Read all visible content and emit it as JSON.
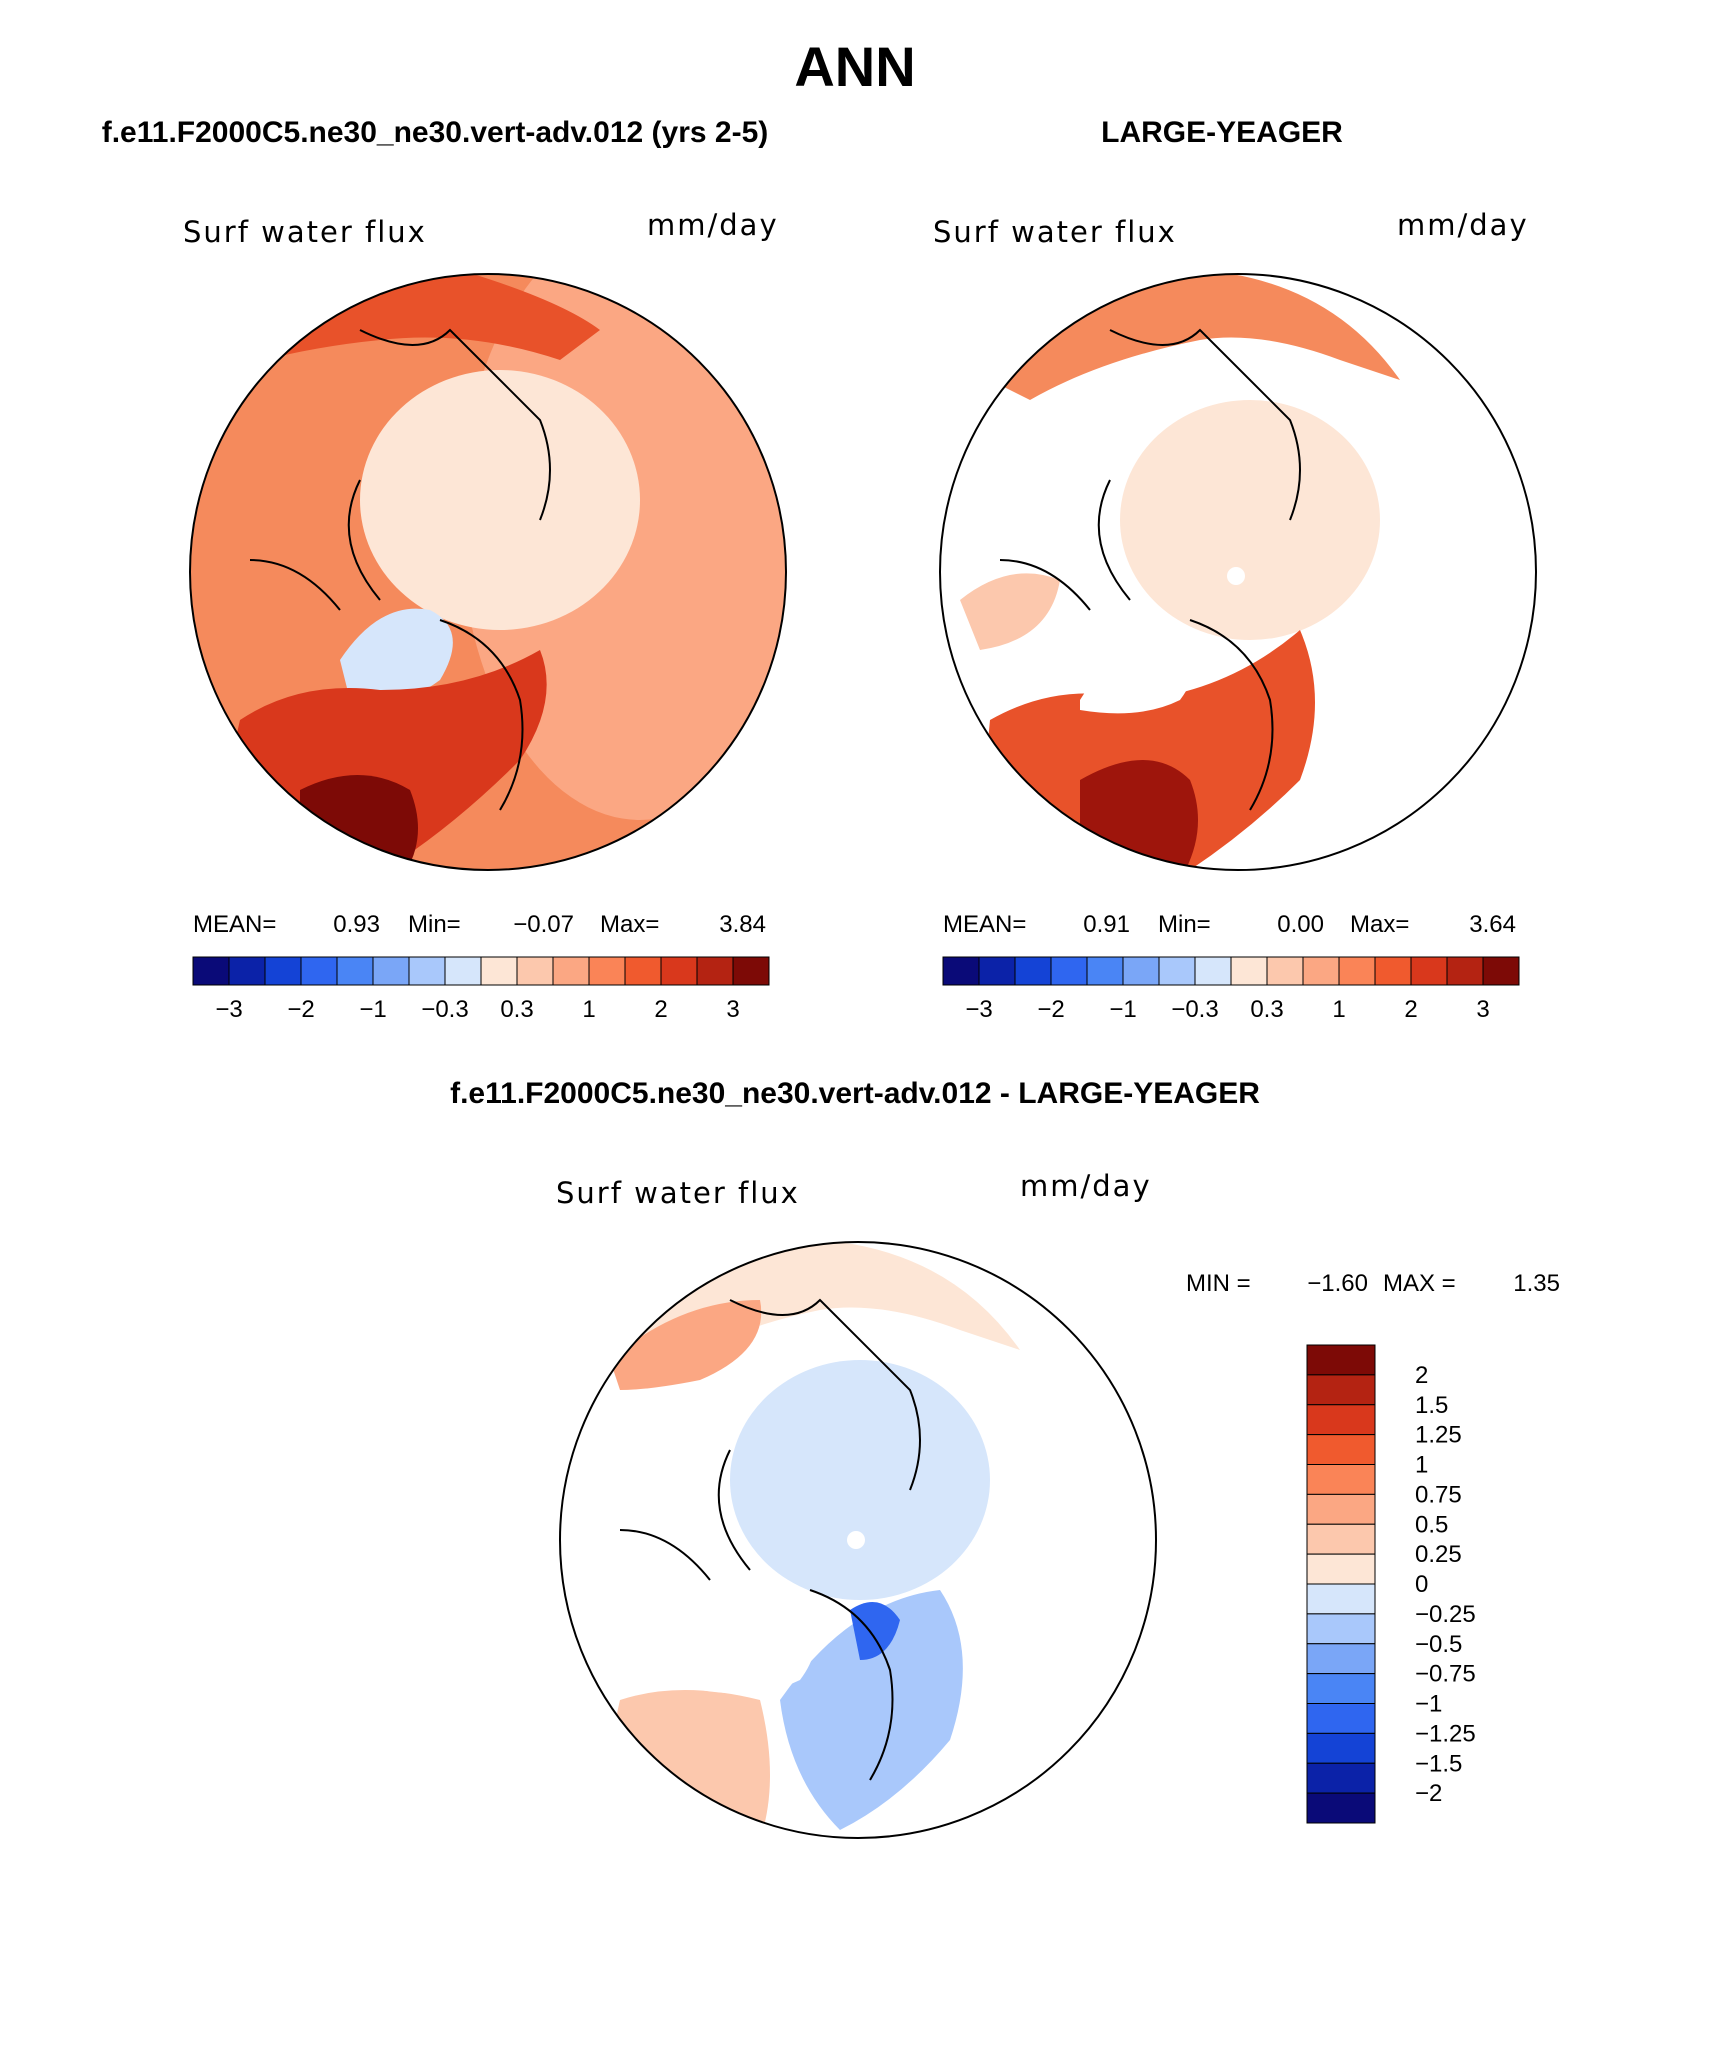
{
  "page_title": "ANN",
  "chart_data": [
    {
      "type": "heatmap",
      "title": "f.e11.F2000C5.ne30_ne30.vert-adv.012 (yrs 2-5)",
      "variable": "Surf water flux",
      "units": "mm/day",
      "stats": {
        "mean_label": "MEAN=",
        "mean": "0.93",
        "min_label": "Min=",
        "min": "−0.07",
        "max_label": "Max=",
        "max": "3.84"
      },
      "colorbar": {
        "orientation": "horizontal",
        "tick_labels": [
          "−3",
          "−2",
          "−1",
          "−0.3",
          "0.3",
          "1",
          "2",
          "3"
        ],
        "colors": [
          "#0a0a78",
          "#0b22a8",
          "#1443d6",
          "#2f66f0",
          "#4a85f5",
          "#7aa6f7",
          "#a9c8fb",
          "#d6e6fb",
          "#fde6d6",
          "#fcc8ad",
          "#fba783",
          "#fa8457",
          "#f05a2e",
          "#d9381c",
          "#b42312",
          "#7d0a06"
        ]
      }
    },
    {
      "type": "heatmap",
      "title": "LARGE-YEAGER",
      "variable": "Surf water flux",
      "units": "mm/day",
      "stats": {
        "mean_label": "MEAN=",
        "mean": "0.91",
        "min_label": "Min=",
        "min": "0.00",
        "max_label": "Max=",
        "max": "3.64"
      },
      "colorbar": {
        "orientation": "horizontal",
        "tick_labels": [
          "−3",
          "−2",
          "−1",
          "−0.3",
          "0.3",
          "1",
          "2",
          "3"
        ],
        "colors": [
          "#0a0a78",
          "#0b22a8",
          "#1443d6",
          "#2f66f0",
          "#4a85f5",
          "#7aa6f7",
          "#a9c8fb",
          "#d6e6fb",
          "#fde6d6",
          "#fcc8ad",
          "#fba783",
          "#fa8457",
          "#f05a2e",
          "#d9381c",
          "#b42312",
          "#7d0a06"
        ]
      }
    },
    {
      "type": "heatmap",
      "title": "f.e11.F2000C5.ne30_ne30.vert-adv.012 - LARGE-YEAGER",
      "variable": "Surf water flux",
      "units": "mm/day",
      "stats": {
        "min_label": "MIN =",
        "min": "−1.60",
        "max_label": "MAX =",
        "max": "1.35"
      },
      "colorbar": {
        "orientation": "vertical",
        "tick_labels": [
          "2",
          "1.5",
          "1.25",
          "1",
          "0.75",
          "0.5",
          "0.25",
          "0",
          "−0.25",
          "−0.5",
          "−0.75",
          "−1",
          "−1.25",
          "−1.5",
          "−2"
        ],
        "colors": [
          "#7d0a06",
          "#b42312",
          "#d9381c",
          "#f05a2e",
          "#fa8457",
          "#fba783",
          "#fcc8ad",
          "#fde6d6",
          "#d6e6fb",
          "#a9c8fb",
          "#7aa6f7",
          "#4a85f5",
          "#2f66f0",
          "#1443d6",
          "#0b22a8",
          "#0a0a78"
        ]
      }
    }
  ]
}
